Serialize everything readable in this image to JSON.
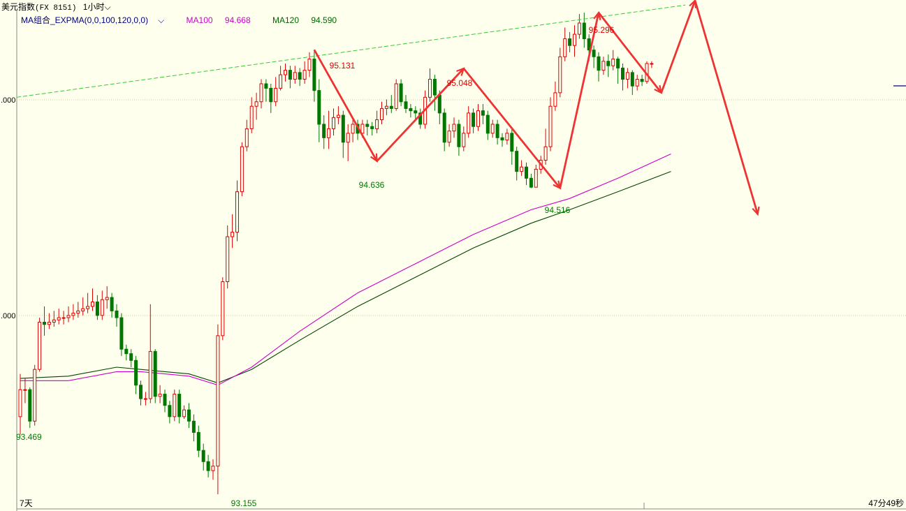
{
  "header": {
    "instrument": "美元指数",
    "code": "(FX 8151)",
    "period": "1小时"
  },
  "legend": {
    "indicator": "MA组合_EXPMA(0,0,100,120,0,0)",
    "ma100_label": "MA100",
    "ma100_value": "94.668",
    "ma120_label": "MA120",
    "ma120_value": "94.590"
  },
  "footer": {
    "left": "7天",
    "right": "47分49秒"
  },
  "colors": {
    "background": "#ffffee",
    "up": "#dd0000",
    "down": "#007700",
    "ma100": "#cc00cc",
    "ma120": "#004400",
    "trend": "#33cc33",
    "arrow": "#ee3333"
  },
  "chart_data": {
    "type": "candlestick",
    "y_axis": {
      "ticks": [
        ".000",
        ".000"
      ]
    },
    "annotations": [
      {
        "label": "95.131",
        "kind": "high"
      },
      {
        "label": "94.636",
        "kind": "low"
      },
      {
        "label": "95.048",
        "kind": "high"
      },
      {
        "label": "94.516",
        "kind": "low"
      },
      {
        "label": "95.296",
        "kind": "high"
      },
      {
        "label": "93.469",
        "kind": "low"
      },
      {
        "label": "93.155",
        "kind": "low"
      }
    ],
    "candles": [
      [
        93.5,
        93.62,
        93.69,
        93.42
      ],
      [
        93.62,
        93.62,
        93.67,
        93.56
      ],
      [
        93.62,
        93.48,
        93.63,
        93.45
      ],
      [
        93.48,
        93.71,
        93.73,
        93.46
      ],
      [
        93.71,
        93.92,
        93.94,
        93.7
      ],
      [
        93.92,
        93.91,
        93.99,
        93.86
      ],
      [
        93.91,
        93.92,
        93.96,
        93.89
      ],
      [
        93.92,
        93.93,
        93.97,
        93.9
      ],
      [
        93.93,
        93.94,
        93.98,
        93.91
      ],
      [
        93.94,
        93.94,
        93.97,
        93.91
      ],
      [
        93.94,
        93.95,
        93.99,
        93.92
      ],
      [
        93.95,
        93.96,
        94.0,
        93.93
      ],
      [
        93.96,
        93.97,
        94.01,
        93.94
      ],
      [
        93.97,
        93.98,
        94.03,
        93.95
      ],
      [
        93.98,
        93.99,
        94.05,
        93.96
      ],
      [
        93.99,
        94.01,
        94.07,
        93.97
      ],
      [
        94.01,
        93.95,
        94.04,
        93.93
      ],
      [
        93.95,
        94.02,
        94.06,
        93.93
      ],
      [
        94.02,
        94.03,
        94.08,
        93.98
      ],
      [
        94.03,
        93.97,
        94.05,
        93.94
      ],
      [
        93.97,
        93.94,
        94.0,
        93.9
      ],
      [
        93.94,
        93.8,
        93.96,
        93.77
      ],
      [
        93.8,
        93.78,
        93.82,
        93.75
      ],
      [
        93.78,
        93.75,
        93.8,
        93.72
      ],
      [
        93.75,
        93.64,
        93.77,
        93.6
      ],
      [
        93.64,
        93.58,
        93.66,
        93.55
      ],
      [
        93.58,
        93.58,
        93.61,
        93.55
      ],
      [
        93.58,
        93.79,
        94.0,
        93.56
      ],
      [
        93.79,
        93.59,
        93.8,
        93.56
      ],
      [
        93.59,
        93.6,
        93.64,
        93.56
      ],
      [
        93.6,
        93.55,
        93.62,
        93.52
      ],
      [
        93.55,
        93.5,
        93.57,
        93.47
      ],
      [
        93.5,
        93.6,
        93.62,
        93.48
      ],
      [
        93.6,
        93.5,
        93.62,
        93.47
      ],
      [
        93.5,
        93.53,
        93.55,
        93.49
      ],
      [
        93.53,
        93.48,
        93.56,
        93.45
      ],
      [
        93.48,
        93.43,
        93.51,
        93.39
      ],
      [
        93.43,
        93.35,
        93.46,
        93.32
      ],
      [
        93.35,
        93.3,
        93.38,
        93.26
      ],
      [
        93.3,
        93.26,
        93.33,
        93.23
      ],
      [
        93.26,
        93.28,
        93.31,
        93.22
      ],
      [
        93.28,
        93.86,
        93.91,
        93.155
      ],
      [
        93.86,
        94.1,
        94.12,
        93.84
      ],
      [
        94.1,
        94.3,
        94.35,
        94.07
      ],
      [
        94.3,
        94.32,
        94.4,
        94.25
      ],
      [
        94.32,
        94.5,
        94.55,
        94.28
      ],
      [
        94.5,
        94.7,
        94.72,
        94.48
      ],
      [
        94.7,
        94.78,
        94.82,
        94.68
      ],
      [
        94.78,
        94.88,
        94.92,
        94.76
      ],
      [
        94.88,
        94.9,
        94.94,
        94.82
      ],
      [
        94.9,
        94.98,
        95.0,
        94.87
      ],
      [
        94.98,
        94.96,
        95.0,
        94.9
      ],
      [
        94.96,
        94.9,
        94.98,
        94.85
      ],
      [
        94.9,
        94.96,
        95.01,
        94.88
      ],
      [
        94.96,
        95.02,
        95.06,
        94.95
      ],
      [
        95.02,
        95.04,
        95.07,
        94.99
      ],
      [
        95.04,
        95.0,
        95.06,
        94.96
      ],
      [
        95.0,
        95.03,
        95.06,
        94.98
      ],
      [
        95.03,
        95.0,
        95.05,
        94.97
      ],
      [
        95.0,
        95.04,
        95.08,
        94.98
      ],
      [
        95.04,
        95.09,
        95.12,
        95.01
      ],
      [
        95.09,
        94.95,
        95.131,
        94.9
      ],
      [
        94.95,
        94.8,
        95.0,
        94.72
      ],
      [
        94.8,
        94.74,
        94.84,
        94.69
      ],
      [
        94.74,
        94.78,
        94.86,
        94.69
      ],
      [
        94.78,
        94.83,
        94.87,
        94.75
      ],
      [
        94.83,
        94.84,
        94.88,
        94.8
      ],
      [
        94.84,
        94.72,
        94.86,
        94.65
      ],
      [
        94.72,
        94.76,
        94.8,
        94.636
      ],
      [
        94.76,
        94.8,
        94.82,
        94.72
      ],
      [
        94.8,
        94.76,
        94.82,
        94.73
      ],
      [
        94.76,
        94.8,
        94.82,
        94.74
      ],
      [
        94.8,
        94.79,
        94.82,
        94.75
      ],
      [
        94.79,
        94.78,
        94.81,
        94.75
      ],
      [
        94.78,
        94.82,
        94.86,
        94.76
      ],
      [
        94.82,
        94.87,
        94.9,
        94.8
      ],
      [
        94.87,
        94.88,
        94.91,
        94.84
      ],
      [
        94.88,
        94.87,
        94.93,
        94.85
      ],
      [
        94.87,
        94.98,
        95.0,
        94.86
      ],
      [
        94.98,
        94.9,
        95.0,
        94.88
      ],
      [
        94.9,
        94.87,
        94.93,
        94.85
      ],
      [
        94.87,
        94.86,
        94.89,
        94.83
      ],
      [
        94.86,
        94.85,
        94.88,
        94.82
      ],
      [
        94.85,
        94.8,
        94.87,
        94.78
      ],
      [
        94.8,
        94.92,
        94.95,
        94.78
      ],
      [
        94.92,
        95.0,
        95.048,
        94.9
      ],
      [
        95.0,
        94.93,
        95.02,
        94.86
      ],
      [
        94.93,
        94.85,
        94.95,
        94.8
      ],
      [
        94.85,
        94.72,
        94.87,
        94.68
      ],
      [
        94.72,
        94.77,
        94.8,
        94.7
      ],
      [
        94.77,
        94.8,
        94.83,
        94.74
      ],
      [
        94.8,
        94.7,
        94.82,
        94.66
      ],
      [
        94.7,
        94.76,
        94.79,
        94.68
      ],
      [
        94.76,
        94.85,
        94.88,
        94.74
      ],
      [
        94.85,
        94.79,
        94.87,
        94.76
      ],
      [
        94.79,
        94.86,
        94.89,
        94.77
      ],
      [
        94.86,
        94.84,
        94.89,
        94.8
      ],
      [
        94.84,
        94.76,
        94.86,
        94.73
      ],
      [
        94.76,
        94.8,
        94.82,
        94.74
      ],
      [
        94.8,
        94.74,
        94.82,
        94.71
      ],
      [
        94.74,
        94.73,
        94.76,
        94.7
      ],
      [
        94.73,
        94.76,
        94.78,
        94.71
      ],
      [
        94.76,
        94.68,
        94.78,
        94.62
      ],
      [
        94.68,
        94.59,
        94.7,
        94.55
      ],
      [
        94.59,
        94.61,
        94.64,
        94.57
      ],
      [
        94.61,
        94.56,
        94.63,
        94.53
      ],
      [
        94.56,
        94.52,
        94.58,
        94.516
      ],
      [
        94.52,
        94.6,
        94.62,
        94.52
      ],
      [
        94.6,
        94.64,
        94.66,
        94.58
      ],
      [
        94.64,
        94.7,
        94.78,
        94.62
      ],
      [
        94.7,
        94.88,
        94.92,
        94.68
      ],
      [
        94.88,
        94.94,
        94.99,
        94.86
      ],
      [
        94.94,
        95.1,
        95.14,
        94.92
      ],
      [
        95.1,
        95.18,
        95.23,
        95.08
      ],
      [
        95.18,
        95.15,
        95.21,
        95.12
      ],
      [
        95.15,
        95.2,
        95.24,
        95.1
      ],
      [
        95.2,
        95.25,
        95.29,
        95.18
      ],
      [
        95.25,
        95.18,
        95.296,
        95.14
      ],
      [
        95.18,
        95.13,
        95.2,
        95.08
      ],
      [
        95.13,
        95.1,
        95.15,
        95.05
      ],
      [
        95.1,
        95.04,
        95.12,
        94.99
      ],
      [
        95.04,
        95.08,
        95.1,
        95.02
      ],
      [
        95.08,
        95.06,
        95.11,
        95.01
      ],
      [
        95.06,
        95.09,
        95.13,
        95.04
      ],
      [
        95.09,
        95.05,
        95.1,
        94.98
      ],
      [
        95.05,
        95.0,
        95.07,
        94.95
      ],
      [
        95.0,
        95.03,
        95.05,
        94.96
      ],
      [
        95.03,
        94.97,
        95.04,
        94.93
      ],
      [
        94.97,
        95.0,
        95.02,
        94.95
      ],
      [
        95.0,
        94.99,
        95.02,
        94.97
      ],
      [
        94.99,
        95.07,
        95.08,
        94.98
      ],
      [
        95.07,
        95.07,
        95.08,
        95.05
      ]
    ],
    "ma100": [
      [
        0,
        93.66
      ],
      [
        10,
        93.66
      ],
      [
        20,
        93.7
      ],
      [
        25,
        93.7
      ],
      [
        35,
        93.68
      ],
      [
        41,
        93.64
      ],
      [
        48,
        93.72
      ],
      [
        58,
        93.88
      ],
      [
        70,
        94.05
      ],
      [
        82,
        94.18
      ],
      [
        94,
        94.31
      ],
      [
        106,
        94.42
      ],
      [
        114,
        94.47
      ],
      [
        124,
        94.56
      ],
      [
        135,
        94.668
      ]
    ],
    "ma120": [
      [
        0,
        93.67
      ],
      [
        10,
        93.68
      ],
      [
        20,
        93.72
      ],
      [
        25,
        93.71
      ],
      [
        35,
        93.69
      ],
      [
        41,
        93.65
      ],
      [
        48,
        93.71
      ],
      [
        58,
        93.84
      ],
      [
        70,
        93.99
      ],
      [
        82,
        94.12
      ],
      [
        94,
        94.25
      ],
      [
        106,
        94.36
      ],
      [
        114,
        94.42
      ],
      [
        124,
        94.5
      ],
      [
        135,
        94.59
      ]
    ]
  }
}
